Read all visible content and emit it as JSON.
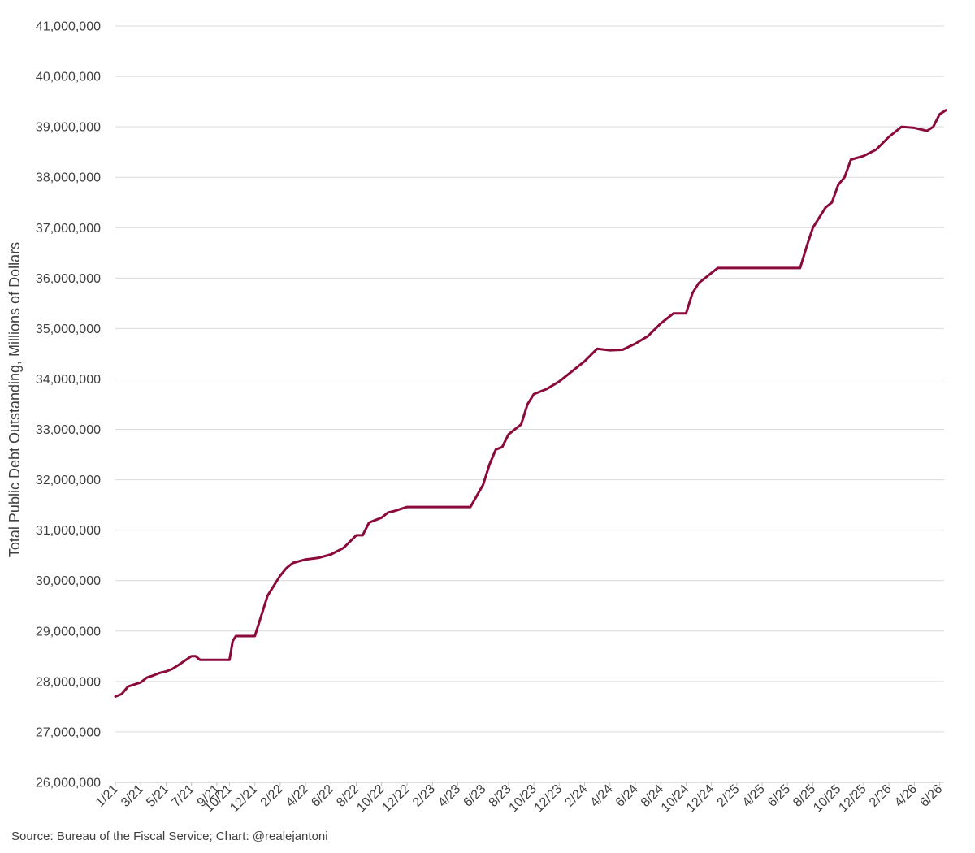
{
  "chart_data": {
    "type": "line",
    "title": "",
    "ylabel": "Total Public Debt Outstanding, Millions of Dollars",
    "xlabel": "",
    "ylim": [
      26000000,
      41000000
    ],
    "y_ticks": [
      26000000,
      27000000,
      28000000,
      29000000,
      30000000,
      31000000,
      32000000,
      33000000,
      34000000,
      35000000,
      36000000,
      37000000,
      38000000,
      39000000,
      40000000,
      41000000
    ],
    "y_tick_labels": [
      "26,000,000",
      "27,000,000",
      "28,000,000",
      "29,000,000",
      "30,000,000",
      "31,000,000",
      "32,000,000",
      "33,000,000",
      "34,000,000",
      "35,000,000",
      "36,000,000",
      "37,000,000",
      "38,000,000",
      "39,000,000",
      "40,000,000",
      "41,000,000"
    ],
    "x_tick_labels": [
      "1/21",
      "3/21",
      "5/21",
      "7/21",
      "9/21",
      "10/21",
      "12/21",
      "2/22",
      "4/22",
      "6/22",
      "8/22",
      "10/22",
      "12/22",
      "2/23",
      "4/23",
      "6/23",
      "8/23",
      "10/23",
      "12/23",
      "2/24",
      "4/24",
      "6/24",
      "8/24",
      "10/24",
      "12/24",
      "2/25",
      "4/25",
      "6/25",
      "8/25",
      "10/25",
      "12/25",
      "2/26",
      "4/26",
      "6/26"
    ],
    "x_range": [
      "1/21",
      "6/26"
    ],
    "grid": true,
    "legend": "none",
    "line_color": "#8b0a3c",
    "grid_color": "#d9d9d9",
    "series": [
      {
        "x": [
          "1/21",
          "1/21",
          "2/21",
          "3/21",
          "3/21",
          "4/21",
          "4/21",
          "5/21",
          "5/21",
          "6/21",
          "7/21",
          "7/21",
          "7/21",
          "8/21",
          "9/21",
          "10/21",
          "10/21",
          "10/21",
          "10/21",
          "11/21",
          "12/21",
          "12/21",
          "1/22",
          "1/22",
          "2/22",
          "2/22",
          "3/22",
          "4/22",
          "5/22",
          "6/22",
          "7/22",
          "8/22",
          "8/22",
          "9/22",
          "10/22",
          "10/22",
          "11/22",
          "12/22",
          "1/23",
          "2/23",
          "3/23",
          "4/23",
          "5/23",
          "6/23",
          "6/23",
          "7/23",
          "7/23",
          "8/23",
          "9/23",
          "9/23",
          "10/23",
          "11/23",
          "12/23",
          "1/24",
          "2/24",
          "3/24",
          "4/24",
          "5/24",
          "6/24",
          "7/24",
          "8/24",
          "9/24",
          "10/24",
          "10/24",
          "11/24",
          "12/24",
          "12/24",
          "1/25",
          "2/25",
          "4/25",
          "7/25",
          "7/25",
          "8/25",
          "9/25",
          "9/25",
          "10/25",
          "10/25",
          "11/25",
          "12/25",
          "1/26",
          "2/26",
          "3/26",
          "4/26",
          "5/26",
          "5/26",
          "6/26",
          "6/26"
        ],
        "values": [
          27700000,
          27750000,
          27900000,
          27980000,
          28080000,
          28120000,
          28170000,
          28200000,
          28250000,
          28330000,
          28500000,
          28500000,
          28430000,
          28430000,
          28430000,
          28430000,
          28800000,
          28900000,
          28900000,
          28900000,
          28900000,
          29300000,
          29700000,
          29900000,
          30100000,
          30250000,
          30350000,
          30420000,
          30450000,
          30520000,
          30650000,
          30900000,
          30900000,
          31150000,
          31250000,
          31350000,
          31380000,
          31460000,
          31460000,
          31460000,
          31460000,
          31460000,
          31460000,
          31900000,
          32300000,
          32600000,
          32650000,
          32900000,
          33100000,
          33500000,
          33700000,
          33800000,
          33950000,
          34150000,
          34350000,
          34600000,
          34570000,
          34580000,
          34700000,
          34850000,
          35100000,
          35300000,
          35300000,
          35700000,
          35900000,
          36100000,
          36200000,
          36200000,
          36200000,
          36200000,
          36200000,
          36620000,
          37000000,
          37400000,
          37500000,
          37850000,
          38000000,
          38350000,
          38420000,
          38550000,
          38800000,
          39000000,
          38980000,
          38920000,
          39000000,
          39250000,
          39330000
        ]
      }
    ]
  },
  "footer": {
    "source": "Source: Bureau of the Fiscal Service; Chart: @realejantoni"
  }
}
